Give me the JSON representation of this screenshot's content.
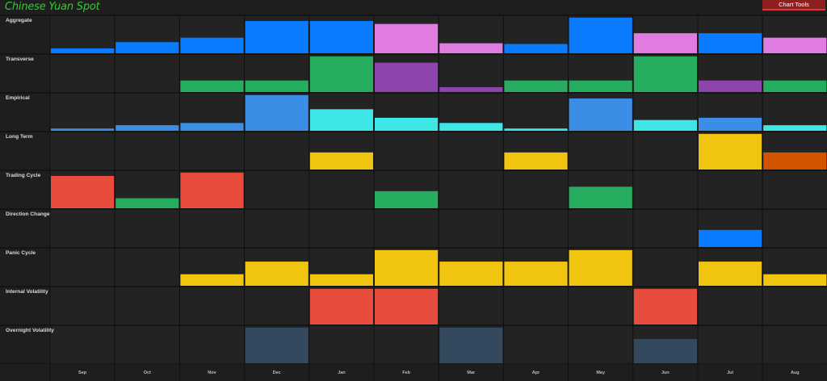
{
  "header": {
    "title": "Chinese Yuan Spot",
    "chart_tools_label": "Chart Tools"
  },
  "chart_data": {
    "type": "heatmap",
    "title": "Chinese Yuan Spot",
    "months": [
      "Sep",
      "Oct",
      "Nov",
      "Dec",
      "Jan",
      "Feb",
      "Mar",
      "Apr",
      "May",
      "Jun",
      "Jul",
      "Aug"
    ],
    "ylim": [
      0,
      1
    ],
    "grid": true,
    "rows": [
      {
        "label": "Aggregate",
        "values": [
          0.13,
          0.3,
          0.42,
          0.87,
          0.87,
          0.79,
          0.27,
          0.25,
          0.96,
          0.54,
          0.54,
          0.42
        ],
        "colors": [
          "#0a7bff",
          "#0a7bff",
          "#0a7bff",
          "#0a7bff",
          "#0a7bff",
          "#e07be0",
          "#e07be0",
          "#0a7bff",
          "#0a7bff",
          "#e07be0",
          "#0a7bff",
          "#e07be0"
        ]
      },
      {
        "label": "Transverse",
        "values": [
          0,
          0,
          0.31,
          0.31,
          0.96,
          0.79,
          0.13,
          0.31,
          0.31,
          0.96,
          0.31,
          0.31
        ],
        "colors": [
          "#26ad60",
          "#26ad60",
          "#26ad60",
          "#26ad60",
          "#26ad60",
          "#8e44ad",
          "#8e44ad",
          "#26ad60",
          "#26ad60",
          "#26ad60",
          "#8e44ad",
          "#26ad60"
        ]
      },
      {
        "label": "Empirical",
        "values": [
          0.06,
          0.15,
          0.21,
          0.96,
          0.58,
          0.35,
          0.21,
          0.06,
          0.87,
          0.29,
          0.35,
          0.15
        ],
        "colors": [
          "#3a8ee6",
          "#3a8ee6",
          "#3a8ee6",
          "#3a8ee6",
          "#3ee6e6",
          "#3ee6e6",
          "#3ee6e6",
          "#3ee6e6",
          "#3a8ee6",
          "#3ee6e6",
          "#3a8ee6",
          "#3ee6e6"
        ]
      },
      {
        "label": "Long Term",
        "values": [
          0,
          0,
          0,
          0,
          0.46,
          0,
          0,
          0.46,
          0,
          0,
          0.96,
          0.46
        ],
        "colors": [
          "#f1c40f",
          "#f1c40f",
          "#f1c40f",
          "#f1c40f",
          "#f1c40f",
          "#f1c40f",
          "#f1c40f",
          "#f1c40f",
          "#f1c40f",
          "#f1c40f",
          "#f1c40f",
          "#d35400"
        ]
      },
      {
        "label": "Trading Cycle",
        "values": [
          0.87,
          0.27,
          0.96,
          0,
          0,
          0.46,
          0,
          0,
          0.58,
          0,
          0,
          0
        ],
        "colors": [
          "#e74c3c",
          "#26ad60",
          "#e74c3c",
          "#e74c3c",
          "#e74c3c",
          "#26ad60",
          "#26ad60",
          "#26ad60",
          "#26ad60",
          "#26ad60",
          "#26ad60",
          "#26ad60"
        ]
      },
      {
        "label": "Direction Change",
        "values": [
          0,
          0,
          0,
          0,
          0,
          0,
          0,
          0,
          0,
          0,
          0.46,
          0
        ],
        "colors": [
          "#0a7bff",
          "#0a7bff",
          "#0a7bff",
          "#0a7bff",
          "#0a7bff",
          "#0a7bff",
          "#0a7bff",
          "#0a7bff",
          "#0a7bff",
          "#0a7bff",
          "#0a7bff",
          "#0a7bff"
        ]
      },
      {
        "label": "Panic Cycle",
        "values": [
          0,
          0,
          0.31,
          0.65,
          0.31,
          0.96,
          0.65,
          0.65,
          0.96,
          0,
          0.65,
          0.31
        ],
        "colors": [
          "#f1c40f",
          "#f1c40f",
          "#f1c40f",
          "#f1c40f",
          "#f1c40f",
          "#f1c40f",
          "#f1c40f",
          "#f1c40f",
          "#f1c40f",
          "#f1c40f",
          "#f1c40f",
          "#f1c40f"
        ]
      },
      {
        "label": "Internal Volatility",
        "values": [
          0,
          0,
          0,
          0,
          0.96,
          0.96,
          0,
          0,
          0,
          0.96,
          0,
          0
        ],
        "colors": [
          "#e74c3c",
          "#e74c3c",
          "#e74c3c",
          "#e74c3c",
          "#e74c3c",
          "#e74c3c",
          "#e74c3c",
          "#e74c3c",
          "#e74c3c",
          "#e74c3c",
          "#e74c3c",
          "#e74c3c"
        ]
      },
      {
        "label": "Overnight Volatility",
        "values": [
          0,
          0,
          0,
          0.96,
          0,
          0,
          0.96,
          0,
          0,
          0.65,
          0,
          0
        ],
        "colors": [
          "#34495e",
          "#34495e",
          "#34495e",
          "#34495e",
          "#34495e",
          "#34495e",
          "#34495e",
          "#34495e",
          "#34495e",
          "#34495e",
          "#34495e",
          "#34495e"
        ]
      }
    ]
  }
}
